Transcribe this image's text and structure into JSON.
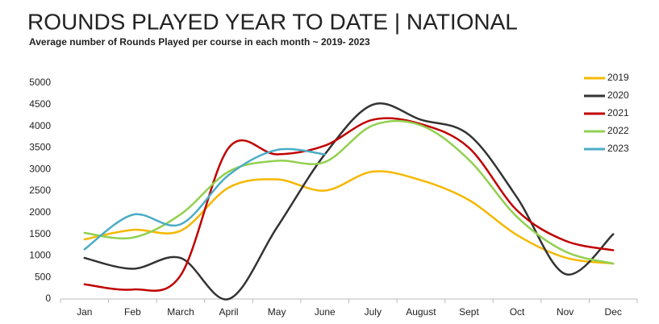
{
  "chart_data": {
    "type": "line",
    "title": "ROUNDS PLAYED YEAR TO DATE | NATIONAL",
    "subtitle": "Average number of Rounds Played per course in each month ~ 2019- 2023",
    "categories": [
      "Jan",
      "Feb",
      "March",
      "April",
      "May",
      "June",
      "July",
      "August",
      "Sept",
      "Oct",
      "Nov",
      "Dec"
    ],
    "series": [
      {
        "name": "2019",
        "color": "#f5b800",
        "values": [
          1380,
          1600,
          1580,
          2580,
          2770,
          2510,
          2950,
          2750,
          2290,
          1480,
          960,
          820
        ]
      },
      {
        "name": "2020",
        "color": "#333333",
        "values": [
          950,
          700,
          950,
          0,
          1650,
          3350,
          4500,
          4150,
          3800,
          2350,
          580,
          1500
        ]
      },
      {
        "name": "2021",
        "color": "#c00000",
        "values": [
          340,
          220,
          550,
          3500,
          3350,
          3550,
          4150,
          4050,
          3500,
          2050,
          1350,
          1130
        ]
      },
      {
        "name": "2022",
        "color": "#92d050",
        "values": [
          1530,
          1420,
          1960,
          2950,
          3200,
          3170,
          4020,
          4020,
          3220,
          1900,
          1100,
          820
        ]
      },
      {
        "name": "2023",
        "color": "#4bacc6",
        "values": [
          1150,
          1950,
          1730,
          2870,
          3450,
          3350,
          null,
          null,
          null,
          null,
          null,
          null
        ]
      }
    ],
    "ylim": [
      0,
      5000
    ],
    "yticks": [
      0,
      500,
      1000,
      1500,
      2000,
      2500,
      3000,
      3500,
      4000,
      4500,
      5000
    ],
    "grid": false,
    "legend": "right"
  }
}
